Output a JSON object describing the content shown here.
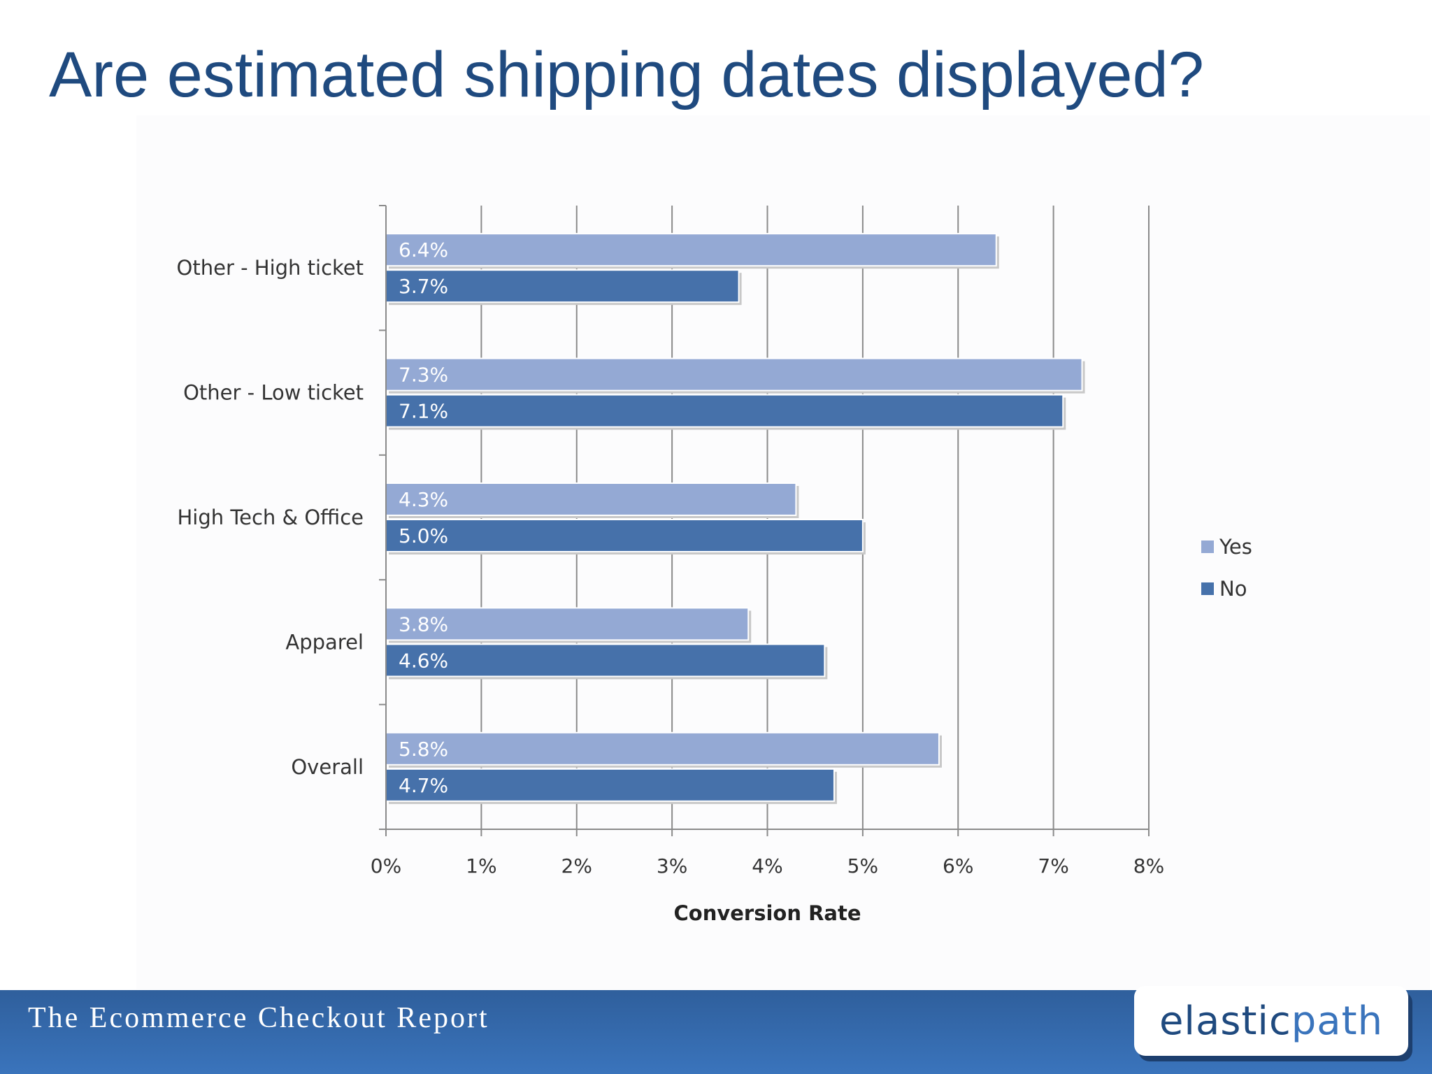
{
  "slide": {
    "title": "Are estimated shipping dates displayed?",
    "footer_text": "The Ecommerce Checkout Report",
    "logo_part1": "elastic",
    "logo_part2": "path"
  },
  "colors": {
    "title": "#1f4a7f",
    "yes_bar": "#94a9d4",
    "no_bar": "#4671aa",
    "grid": "#8a8a8a",
    "footer": "#3a74bc"
  },
  "chart_data": {
    "type": "bar",
    "orientation": "horizontal",
    "categories": [
      "Other - High ticket",
      "Other - Low ticket",
      "High Tech & Office",
      "Apparel",
      "Overall"
    ],
    "series": [
      {
        "name": "Yes",
        "values": [
          6.4,
          7.3,
          4.3,
          3.8,
          5.8
        ],
        "labels": [
          "6.4%",
          "7.3%",
          "4.3%",
          "3.8%",
          "5.8%"
        ]
      },
      {
        "name": "No",
        "values": [
          3.7,
          7.1,
          5.0,
          4.6,
          4.7
        ],
        "labels": [
          "3.7%",
          "7.1%",
          "5.0%",
          "4.6%",
          "4.7%"
        ]
      }
    ],
    "xlabel": "Conversion Rate",
    "ylabel": "",
    "xlim": [
      0,
      8
    ],
    "xticks": [
      "0%",
      "1%",
      "2%",
      "3%",
      "4%",
      "5%",
      "6%",
      "7%",
      "8%"
    ],
    "grid": true,
    "legend": "right"
  }
}
